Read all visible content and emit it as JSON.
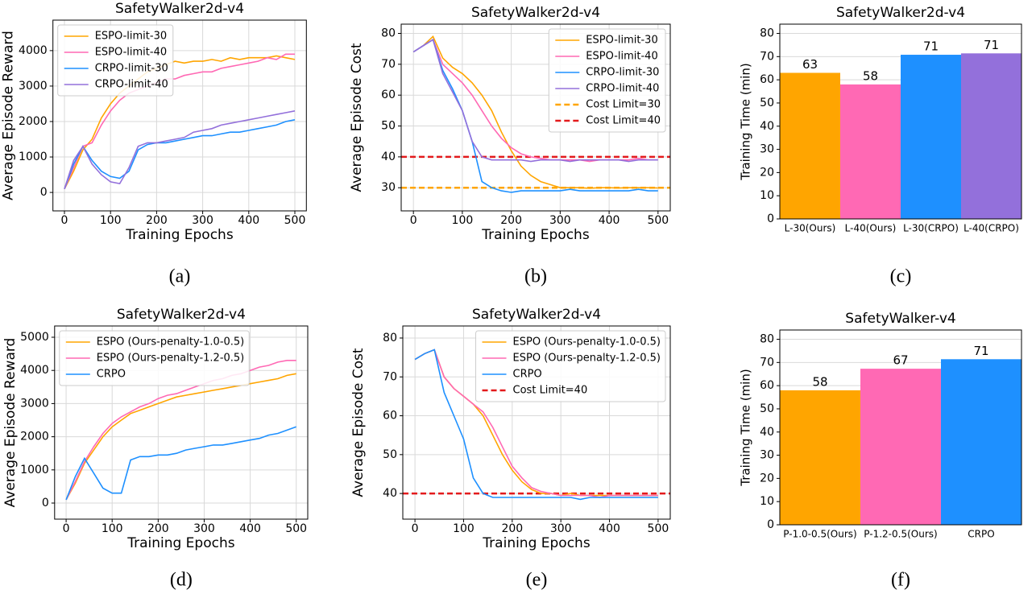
{
  "chart_data": [
    {
      "type": "line",
      "title": "SafetyWalker2d-v4",
      "xlabel": "Training Epochs",
      "ylabel": "Average Episode Reward",
      "caption": "(a)",
      "x": [
        0,
        20,
        40,
        60,
        80,
        100,
        120,
        140,
        160,
        180,
        200,
        220,
        240,
        260,
        280,
        300,
        320,
        340,
        360,
        380,
        400,
        420,
        440,
        460,
        480,
        500
      ],
      "xlim": [
        -25,
        525
      ],
      "xticks": [
        0,
        100,
        200,
        300,
        400,
        500
      ],
      "ylim": [
        -520,
        4860
      ],
      "yticks": [
        0,
        1000,
        2000,
        3000,
        4000
      ],
      "grid": true,
      "legend": "upper left",
      "series": [
        {
          "name": "ESPO-limit-30",
          "color": "#ffa500",
          "values": [
            100,
            600,
            1200,
            1500,
            2100,
            2500,
            2800,
            3000,
            3200,
            3400,
            3500,
            3600,
            3700,
            3650,
            3700,
            3700,
            3750,
            3700,
            3800,
            3750,
            3800,
            3800,
            3800,
            3850,
            3800,
            3750
          ]
        },
        {
          "name": "ESPO-limit-40",
          "color": "#ff69b4",
          "values": [
            100,
            700,
            1300,
            1400,
            1900,
            2300,
            2600,
            2800,
            2900,
            3000,
            3100,
            3200,
            3200,
            3300,
            3350,
            3400,
            3400,
            3500,
            3550,
            3600,
            3650,
            3700,
            3800,
            3750,
            3900,
            3900
          ]
        },
        {
          "name": "CRPO-limit-30",
          "color": "#1e90ff",
          "values": [
            100,
            800,
            1300,
            900,
            600,
            450,
            400,
            600,
            1200,
            1350,
            1400,
            1400,
            1450,
            1500,
            1550,
            1600,
            1600,
            1650,
            1700,
            1700,
            1750,
            1800,
            1850,
            1900,
            2000,
            2050
          ]
        },
        {
          "name": "CRPO-limit-40",
          "color": "#9370db",
          "values": [
            100,
            900,
            1300,
            800,
            500,
            300,
            250,
            700,
            1300,
            1400,
            1400,
            1450,
            1500,
            1550,
            1700,
            1750,
            1800,
            1900,
            1950,
            2000,
            2050,
            2100,
            2150,
            2200,
            2250,
            2300
          ]
        }
      ]
    },
    {
      "type": "line",
      "title": "SafetyWalker2d-v4",
      "xlabel": "Training Epochs",
      "ylabel": "Average Episode Cost",
      "caption": "(b)",
      "x": [
        0,
        20,
        40,
        60,
        80,
        100,
        120,
        140,
        160,
        180,
        200,
        220,
        240,
        260,
        280,
        300,
        320,
        340,
        360,
        380,
        400,
        420,
        440,
        460,
        480,
        500
      ],
      "xlim": [
        -25,
        525
      ],
      "xticks": [
        0,
        100,
        200,
        300,
        400,
        500
      ],
      "ylim": [
        22.5,
        83
      ],
      "yticks": [
        30,
        40,
        50,
        60,
        70,
        80
      ],
      "grid": true,
      "legend": "upper right",
      "series": [
        {
          "name": "ESPO-limit-30",
          "color": "#ffa500",
          "values": [
            74,
            76,
            79,
            72,
            69,
            67,
            64,
            60,
            55,
            48,
            42,
            37,
            34,
            32,
            31,
            30,
            30,
            30,
            29.8,
            30,
            30,
            29.9,
            30,
            30,
            30,
            29.9
          ]
        },
        {
          "name": "ESPO-limit-40",
          "color": "#ff69b4",
          "values": [
            74,
            76,
            78,
            70,
            67,
            64,
            60,
            55,
            50,
            46,
            43,
            41,
            40,
            39.5,
            39,
            39,
            39,
            39,
            38.5,
            39,
            39,
            39,
            39,
            39.5,
            39,
            39
          ]
        },
        {
          "name": "CRPO-limit-30",
          "color": "#1e90ff",
          "values": [
            74,
            76,
            78,
            68,
            62,
            55,
            45,
            32,
            30,
            29,
            28.5,
            29,
            29,
            29,
            29,
            29,
            29.5,
            29,
            29,
            29,
            29,
            29,
            29,
            29.5,
            29,
            29
          ]
        },
        {
          "name": "CRPO-limit-40",
          "color": "#9370db",
          "values": [
            74,
            76,
            78,
            67,
            61,
            55,
            45,
            40,
            39,
            39,
            39,
            39,
            38.5,
            39,
            39,
            39,
            38.5,
            39,
            39,
            39,
            39,
            39,
            38.5,
            39,
            39,
            39
          ]
        }
      ],
      "hlines": [
        {
          "name": "Cost Limit=30",
          "color": "#ffa500",
          "value": 30
        },
        {
          "name": "Cost Limit=40",
          "color": "#e31a1c",
          "value": 40
        }
      ]
    },
    {
      "type": "bar",
      "title": "SafetyWalker2d-v4",
      "ylabel": "Training Time (min)",
      "caption": "(c)",
      "categories": [
        "L-30(Ours)",
        "L-40(Ours)",
        "L-30(CRPO)",
        "L-40(CRPO)"
      ],
      "values": [
        63,
        58,
        70.8,
        71.4
      ],
      "value_labels": [
        "63",
        "58",
        "71",
        "71"
      ],
      "colors": [
        "#ffa500",
        "#ff69b4",
        "#1e90ff",
        "#9370db"
      ],
      "ylim": [
        0,
        84
      ],
      "yticks": [
        0,
        10,
        20,
        30,
        40,
        50,
        60,
        70,
        80
      ],
      "grid": true
    },
    {
      "type": "line",
      "title": "SafetyWalker2d-v4",
      "xlabel": "Training Epochs",
      "ylabel": "Average Episode Reward",
      "caption": "(d)",
      "x": [
        0,
        20,
        40,
        60,
        80,
        100,
        120,
        140,
        160,
        180,
        200,
        220,
        240,
        260,
        280,
        300,
        320,
        340,
        360,
        380,
        400,
        420,
        440,
        460,
        480,
        500
      ],
      "xlim": [
        -25,
        525
      ],
      "xticks": [
        0,
        100,
        200,
        300,
        400,
        500
      ],
      "ylim": [
        -485,
        5340
      ],
      "yticks": [
        0,
        1000,
        2000,
        3000,
        4000,
        5000
      ],
      "grid": true,
      "legend": "upper left",
      "series": [
        {
          "name": "ESPO (Ours-penalty-1.0-0.5)",
          "color": "#ffa500",
          "values": [
            100,
            600,
            1200,
            1600,
            2000,
            2300,
            2500,
            2700,
            2800,
            2900,
            3000,
            3100,
            3200,
            3250,
            3300,
            3350,
            3400,
            3450,
            3500,
            3550,
            3600,
            3650,
            3700,
            3750,
            3850,
            3900
          ]
        },
        {
          "name": "ESPO (Ours-penalty-1.2-0.5)",
          "color": "#ff69b4",
          "values": [
            100,
            650,
            1250,
            1700,
            2100,
            2400,
            2600,
            2750,
            2900,
            3000,
            3150,
            3250,
            3300,
            3400,
            3500,
            3600,
            3700,
            3750,
            3850,
            3900,
            4000,
            4100,
            4150,
            4250,
            4300,
            4300
          ]
        },
        {
          "name": "CRPO",
          "color": "#1e90ff",
          "values": [
            100,
            800,
            1350,
            900,
            450,
            300,
            300,
            1300,
            1400,
            1400,
            1450,
            1450,
            1500,
            1600,
            1650,
            1700,
            1750,
            1750,
            1800,
            1850,
            1900,
            1950,
            2050,
            2100,
            2200,
            2300
          ]
        }
      ]
    },
    {
      "type": "line",
      "title": "SafetyWalker2d-v4",
      "xlabel": "Training Epochs",
      "ylabel": "Average Episode Cost",
      "caption": "(e)",
      "x": [
        0,
        20,
        40,
        60,
        80,
        100,
        120,
        140,
        160,
        180,
        200,
        220,
        240,
        260,
        280,
        300,
        320,
        340,
        360,
        380,
        400,
        420,
        440,
        460,
        480,
        500
      ],
      "xlim": [
        -25,
        525
      ],
      "xticks": [
        0,
        100,
        200,
        300,
        400,
        500
      ],
      "ylim": [
        33.4,
        83.1
      ],
      "yticks": [
        40,
        50,
        60,
        70,
        80
      ],
      "grid": true,
      "legend": "upper right",
      "series": [
        {
          "name": "ESPO (Ours-penalty-1.0-0.5)",
          "color": "#ffa500",
          "values": [
            74.5,
            76,
            77,
            70,
            67,
            65,
            63,
            60,
            55,
            50,
            46,
            43,
            41,
            40,
            40,
            39.5,
            40,
            39.5,
            39.5,
            39.5,
            39.5,
            39.5,
            39.5,
            39.5,
            39.5,
            39.5
          ]
        },
        {
          "name": "ESPO (Ours-penalty-1.2-0.5)",
          "color": "#ff69b4",
          "values": [
            74.5,
            76,
            77,
            70,
            67,
            65,
            63,
            61,
            57,
            52,
            47,
            44,
            41.5,
            40.5,
            40,
            39.5,
            39.5,
            39.5,
            39.5,
            39,
            39.5,
            39.5,
            39.5,
            39.5,
            39.5,
            39.5
          ]
        },
        {
          "name": "CRPO",
          "color": "#1e90ff",
          "values": [
            74.5,
            76,
            77,
            66,
            60,
            54,
            44,
            40,
            39,
            39,
            39,
            39,
            39,
            39,
            39,
            39,
            39,
            38.5,
            39,
            39,
            39,
            39,
            39,
            39,
            39,
            39
          ]
        }
      ],
      "hlines": [
        {
          "name": "Cost Limit=40",
          "color": "#e31a1c",
          "value": 40
        }
      ]
    },
    {
      "type": "bar",
      "title": "SafetyWalker-v4",
      "ylabel": "Training Time (min)",
      "caption": "(f)",
      "categories": [
        "P-1.0-0.5(Ours)",
        "P-1.2-0.5(Ours)",
        "CRPO"
      ],
      "values": [
        58,
        67.3,
        71.4
      ],
      "value_labels": [
        "58",
        "67",
        "71"
      ],
      "colors": [
        "#ffa500",
        "#ff69b4",
        "#1e90ff"
      ],
      "ylim": [
        0,
        84
      ],
      "yticks": [
        0,
        10,
        20,
        30,
        40,
        50,
        60,
        70,
        80
      ],
      "grid": true
    }
  ]
}
